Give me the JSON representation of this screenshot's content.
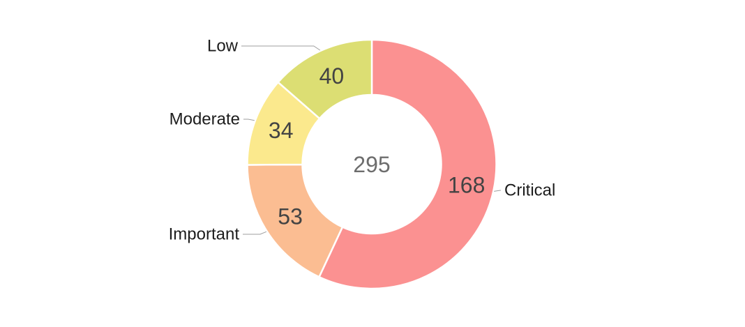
{
  "chart_data": {
    "type": "pie",
    "subtype": "donut",
    "title": "",
    "categories": [
      "Critical",
      "Important",
      "Moderate",
      "Low"
    ],
    "values": [
      168,
      53,
      34,
      40
    ],
    "colors": [
      "#fb9191",
      "#fbbd92",
      "#fbe98d",
      "#dcde73"
    ],
    "total": 295,
    "total_label": "295",
    "start_angle_deg": 0,
    "direction": "clockwise",
    "legend_position": "none",
    "labels": {
      "slice_values_shown": true,
      "category_labels_outside": true,
      "leader_lines": true
    },
    "style": {
      "background": "#ffffff",
      "category_text_color": "#1c1c1c",
      "value_text_color": "#434343",
      "center_text_color": "#6d6d6d",
      "leader_line_color": "#9e9e9e",
      "slice_gap_color": "#ffffff"
    }
  }
}
